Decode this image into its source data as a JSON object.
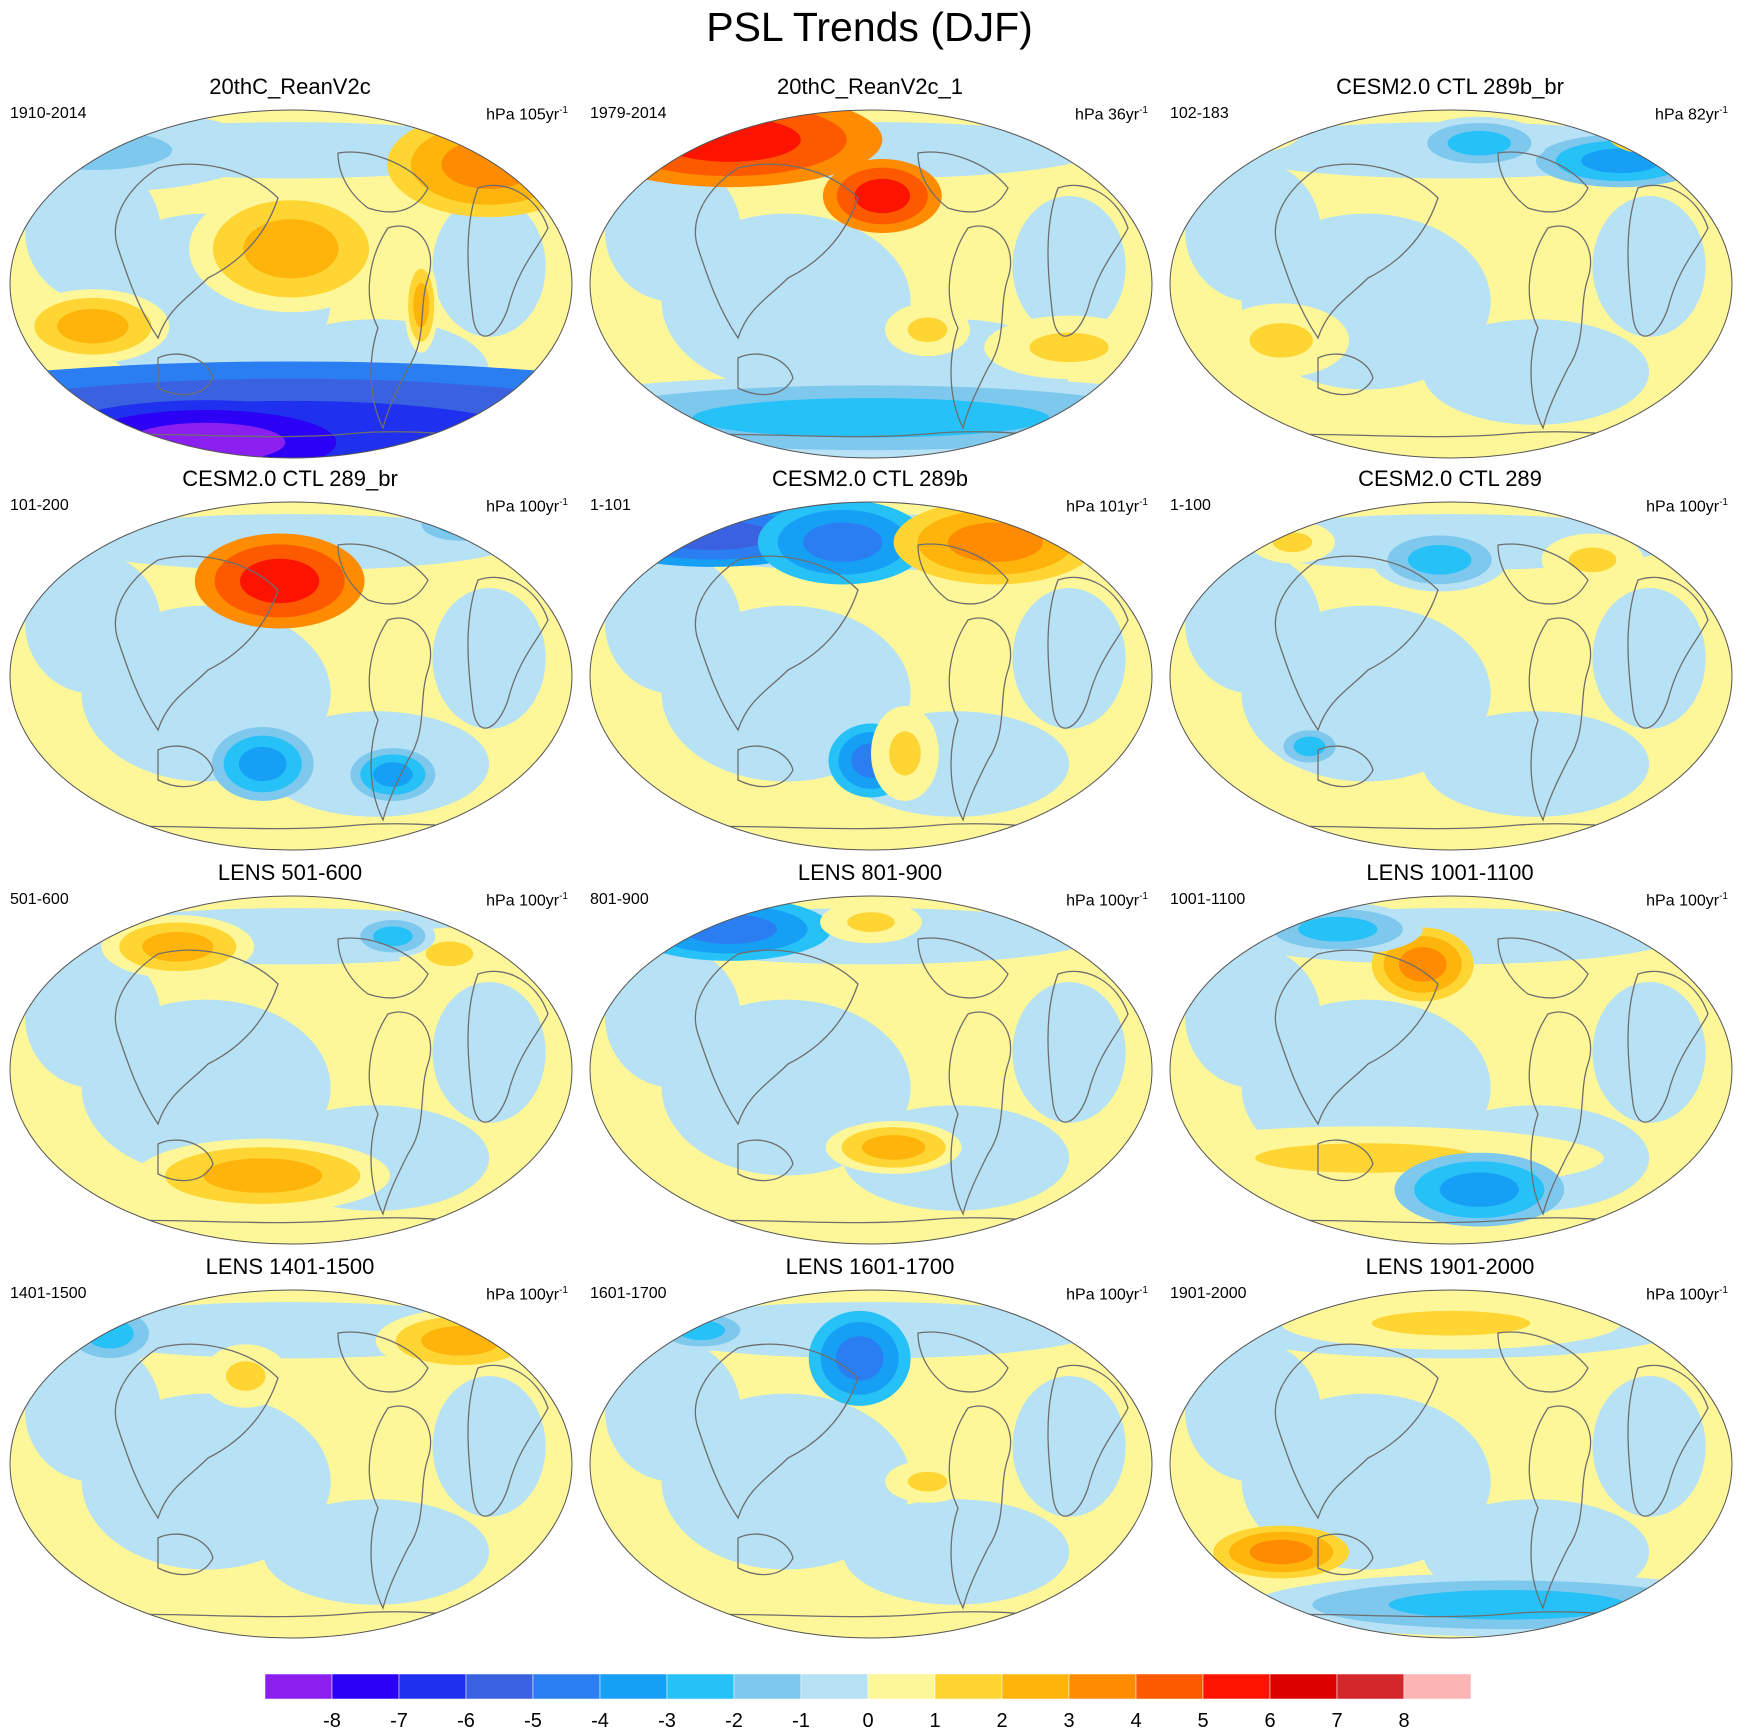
{
  "title": "PSL Trends (DJF)",
  "panels": [
    {
      "title": "20thC_ReanV2c",
      "period": "1910-2014",
      "units_prefix": "hPa ",
      "units_value": "105yr",
      "units_exp": "-1"
    },
    {
      "title": "20thC_ReanV2c_1",
      "period": "1979-2014",
      "units_prefix": "hPa ",
      "units_value": "36yr",
      "units_exp": "-1"
    },
    {
      "title": "CESM2.0 CTL 289b_br",
      "period": "102-183",
      "units_prefix": "hPa ",
      "units_value": "82yr",
      "units_exp": "-1"
    },
    {
      "title": "CESM2.0 CTL 289_br",
      "period": "101-200",
      "units_prefix": "hPa ",
      "units_value": "100yr",
      "units_exp": "-1"
    },
    {
      "title": "CESM2.0 CTL 289b",
      "period": "1-101",
      "units_prefix": "hPa ",
      "units_value": "101yr",
      "units_exp": "-1"
    },
    {
      "title": "CESM2.0 CTL 289",
      "period": "1-100",
      "units_prefix": "hPa ",
      "units_value": "100yr",
      "units_exp": "-1"
    },
    {
      "title": "LENS 501-600",
      "period": "501-600",
      "units_prefix": "hPa ",
      "units_value": "100yr",
      "units_exp": "-1"
    },
    {
      "title": "LENS 801-900",
      "period": "801-900",
      "units_prefix": "hPa ",
      "units_value": "100yr",
      "units_exp": "-1"
    },
    {
      "title": "LENS 1001-1100",
      "period": "1001-1100",
      "units_prefix": "hPa ",
      "units_value": "100yr",
      "units_exp": "-1"
    },
    {
      "title": "LENS 1401-1500",
      "period": "1401-1500",
      "units_prefix": "hPa ",
      "units_value": "100yr",
      "units_exp": "-1"
    },
    {
      "title": "LENS 1601-1700",
      "period": "1601-1700",
      "units_prefix": "hPa ",
      "units_value": "100yr",
      "units_exp": "-1"
    },
    {
      "title": "LENS 1901-2000",
      "period": "1901-2000",
      "units_prefix": "hPa ",
      "units_value": "100yr",
      "units_exp": "-1"
    }
  ],
  "colorbar": {
    "labels": [
      "-8",
      "-7",
      "-6",
      "-5",
      "-4",
      "-3",
      "-2",
      "-1",
      "0",
      "1",
      "2",
      "3",
      "4",
      "5",
      "6",
      "7",
      "8"
    ],
    "colors": [
      "#8a1ff0",
      "#2b00f5",
      "#1f31ee",
      "#3a62e0",
      "#2a7ef2",
      "#16a0f5",
      "#26c1f7",
      "#7ec8ee",
      "#b7e1f4",
      "#fef799",
      "#fed532",
      "#feb40a",
      "#fe8b00",
      "#fd5a00",
      "#fc1400",
      "#dd0000",
      "#d4272c",
      "#fdb4b4"
    ]
  }
}
